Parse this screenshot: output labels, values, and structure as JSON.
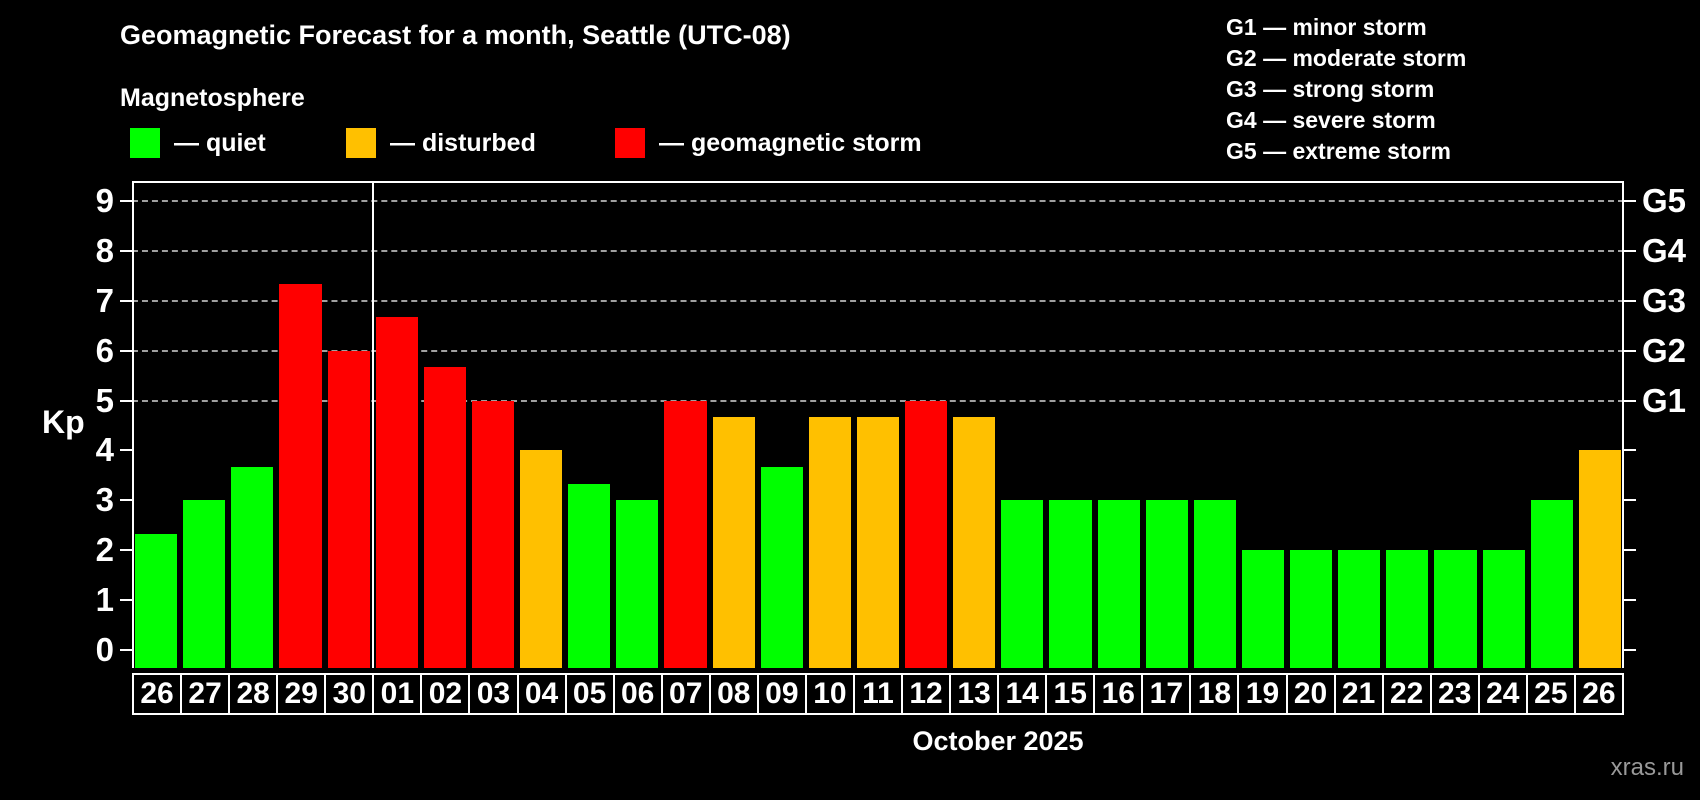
{
  "header": {
    "title": "Geomagnetic Forecast for a month, Seattle (UTC-08)",
    "subtitle": "Magnetosphere"
  },
  "legend": {
    "items": [
      {
        "label": "— quiet",
        "status": "quiet",
        "color": "#00ff00"
      },
      {
        "label": "— disturbed",
        "status": "disturbed",
        "color": "#ffc000"
      },
      {
        "label": "— geomagnetic storm",
        "status": "storm",
        "color": "#ff0000"
      }
    ]
  },
  "storm_scale_legend": {
    "lines": [
      "G1 — minor storm",
      "G2 — moderate storm",
      "G3 — strong storm",
      "G4 — severe storm",
      "G5 — extreme storm"
    ]
  },
  "chart_data": {
    "type": "bar",
    "y_axis_title": "Kp",
    "ylim": [
      0,
      9
    ],
    "y_ticks": [
      0,
      1,
      2,
      3,
      4,
      5,
      6,
      7,
      8,
      9
    ],
    "gridlines_at": [
      5,
      6,
      7,
      8,
      9
    ],
    "grid": "dashed, only at G-storm levels",
    "right_axis_labels": [
      {
        "kp": 5,
        "label": "G1"
      },
      {
        "kp": 6,
        "label": "G2"
      },
      {
        "kp": 7,
        "label": "G3"
      },
      {
        "kp": 8,
        "label": "G4"
      },
      {
        "kp": 9,
        "label": "G5"
      }
    ],
    "month_separator_after_index": 4,
    "categories": [
      "26",
      "27",
      "28",
      "29",
      "30",
      "01",
      "02",
      "03",
      "04",
      "05",
      "06",
      "07",
      "08",
      "09",
      "10",
      "11",
      "12",
      "13",
      "14",
      "15",
      "16",
      "17",
      "18",
      "19",
      "20",
      "21",
      "22",
      "23",
      "24",
      "25",
      "26"
    ],
    "values": [
      2.33,
      3,
      3.67,
      7.33,
      6,
      6.67,
      5.67,
      5,
      4,
      3.33,
      3,
      5,
      4.67,
      3.67,
      4.67,
      4.67,
      5,
      4.67,
      3,
      3,
      3,
      3,
      3,
      2,
      2,
      2,
      2,
      2,
      2,
      3,
      4
    ],
    "statuses": [
      "quiet",
      "quiet",
      "quiet",
      "storm",
      "storm",
      "storm",
      "storm",
      "storm",
      "disturbed",
      "quiet",
      "quiet",
      "storm",
      "disturbed",
      "quiet",
      "disturbed",
      "disturbed",
      "storm",
      "disturbed",
      "quiet",
      "quiet",
      "quiet",
      "quiet",
      "quiet",
      "quiet",
      "quiet",
      "quiet",
      "quiet",
      "quiet",
      "quiet",
      "quiet",
      "disturbed"
    ]
  },
  "footer": {
    "month_label": "October 2025",
    "watermark": "xras.ru"
  },
  "colors": {
    "quiet": "#00ff00",
    "disturbed": "#ffc000",
    "storm": "#ff0000",
    "background": "#000000",
    "grid": "#a0a0a0",
    "text": "#ffffff",
    "watermark": "#999999"
  }
}
